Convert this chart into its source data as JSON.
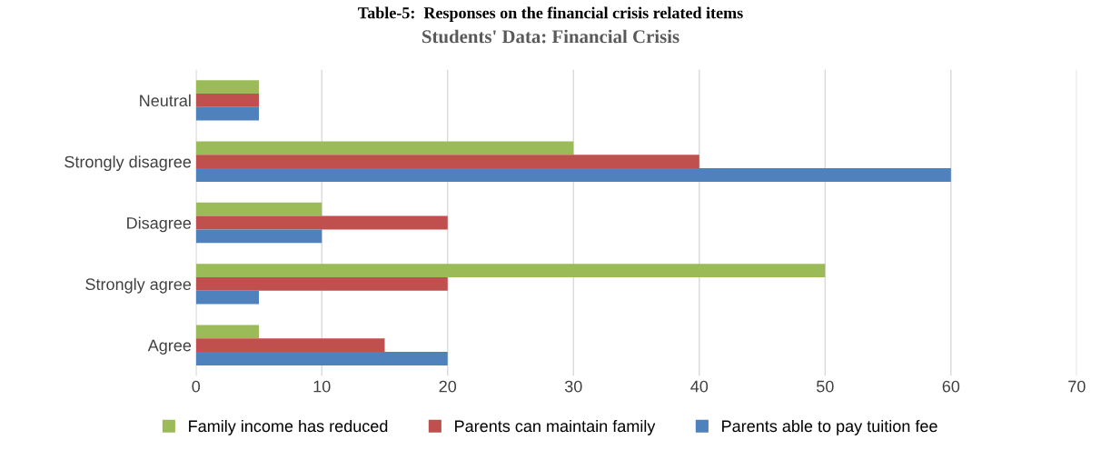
{
  "chart_data": {
    "type": "bar",
    "orientation": "horizontal",
    "subtitle": "Table-5:  Responses on the financial crisis related items",
    "title": "Students' Data: Financial Crisis",
    "categories": [
      "Neutral",
      "Strongly disagree",
      "Disagree",
      "Strongly agree",
      "Agree"
    ],
    "series": [
      {
        "name": "Family income has reduced",
        "color": "#9bbb59",
        "values": [
          5,
          30,
          10,
          50,
          5
        ]
      },
      {
        "name": "Parents can maintain family",
        "color": "#c0504d",
        "values": [
          5,
          40,
          20,
          20,
          15
        ]
      },
      {
        "name": "Parents able to pay tuition fee",
        "color": "#4f81bd",
        "values": [
          5,
          60,
          10,
          5,
          20
        ]
      }
    ],
    "xlim": [
      0,
      70
    ],
    "xticks": [
      0,
      10,
      20,
      30,
      40,
      50,
      60,
      70
    ],
    "grid": "x",
    "legend": "bottom"
  }
}
